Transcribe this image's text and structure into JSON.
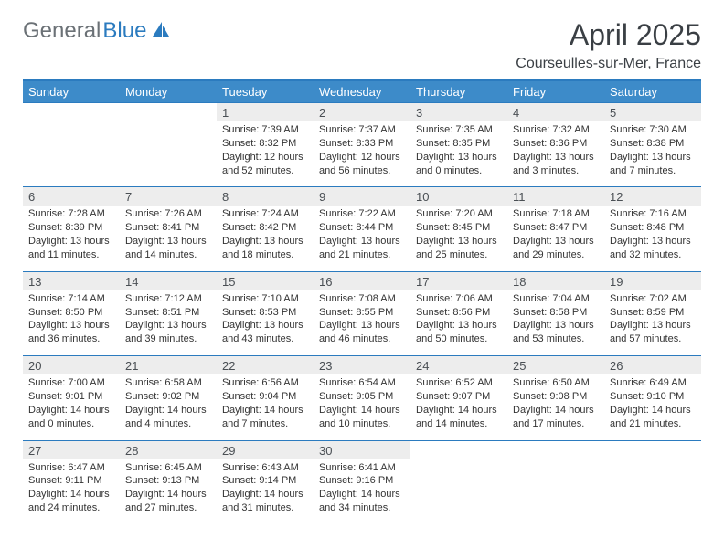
{
  "brand": {
    "part1": "General",
    "part2": "Blue"
  },
  "title": "April 2025",
  "location": "Courseulles-sur-Mer, France",
  "colors": {
    "header_bg": "#3d8bc9",
    "rule": "#2b7bbf",
    "daynum_bg": "#ededed",
    "logo_gray": "#6b7176",
    "logo_blue": "#2b7bbf",
    "text": "#333333",
    "title_text": "#3a3f44"
  },
  "dow": [
    "Sunday",
    "Monday",
    "Tuesday",
    "Wednesday",
    "Thursday",
    "Friday",
    "Saturday"
  ],
  "weeks": [
    [
      null,
      null,
      {
        "n": "1",
        "sr": "Sunrise: 7:39 AM",
        "ss": "Sunset: 8:32 PM",
        "dl": "Daylight: 12 hours and 52 minutes."
      },
      {
        "n": "2",
        "sr": "Sunrise: 7:37 AM",
        "ss": "Sunset: 8:33 PM",
        "dl": "Daylight: 12 hours and 56 minutes."
      },
      {
        "n": "3",
        "sr": "Sunrise: 7:35 AM",
        "ss": "Sunset: 8:35 PM",
        "dl": "Daylight: 13 hours and 0 minutes."
      },
      {
        "n": "4",
        "sr": "Sunrise: 7:32 AM",
        "ss": "Sunset: 8:36 PM",
        "dl": "Daylight: 13 hours and 3 minutes."
      },
      {
        "n": "5",
        "sr": "Sunrise: 7:30 AM",
        "ss": "Sunset: 8:38 PM",
        "dl": "Daylight: 13 hours and 7 minutes."
      }
    ],
    [
      {
        "n": "6",
        "sr": "Sunrise: 7:28 AM",
        "ss": "Sunset: 8:39 PM",
        "dl": "Daylight: 13 hours and 11 minutes."
      },
      {
        "n": "7",
        "sr": "Sunrise: 7:26 AM",
        "ss": "Sunset: 8:41 PM",
        "dl": "Daylight: 13 hours and 14 minutes."
      },
      {
        "n": "8",
        "sr": "Sunrise: 7:24 AM",
        "ss": "Sunset: 8:42 PM",
        "dl": "Daylight: 13 hours and 18 minutes."
      },
      {
        "n": "9",
        "sr": "Sunrise: 7:22 AM",
        "ss": "Sunset: 8:44 PM",
        "dl": "Daylight: 13 hours and 21 minutes."
      },
      {
        "n": "10",
        "sr": "Sunrise: 7:20 AM",
        "ss": "Sunset: 8:45 PM",
        "dl": "Daylight: 13 hours and 25 minutes."
      },
      {
        "n": "11",
        "sr": "Sunrise: 7:18 AM",
        "ss": "Sunset: 8:47 PM",
        "dl": "Daylight: 13 hours and 29 minutes."
      },
      {
        "n": "12",
        "sr": "Sunrise: 7:16 AM",
        "ss": "Sunset: 8:48 PM",
        "dl": "Daylight: 13 hours and 32 minutes."
      }
    ],
    [
      {
        "n": "13",
        "sr": "Sunrise: 7:14 AM",
        "ss": "Sunset: 8:50 PM",
        "dl": "Daylight: 13 hours and 36 minutes."
      },
      {
        "n": "14",
        "sr": "Sunrise: 7:12 AM",
        "ss": "Sunset: 8:51 PM",
        "dl": "Daylight: 13 hours and 39 minutes."
      },
      {
        "n": "15",
        "sr": "Sunrise: 7:10 AM",
        "ss": "Sunset: 8:53 PM",
        "dl": "Daylight: 13 hours and 43 minutes."
      },
      {
        "n": "16",
        "sr": "Sunrise: 7:08 AM",
        "ss": "Sunset: 8:55 PM",
        "dl": "Daylight: 13 hours and 46 minutes."
      },
      {
        "n": "17",
        "sr": "Sunrise: 7:06 AM",
        "ss": "Sunset: 8:56 PM",
        "dl": "Daylight: 13 hours and 50 minutes."
      },
      {
        "n": "18",
        "sr": "Sunrise: 7:04 AM",
        "ss": "Sunset: 8:58 PM",
        "dl": "Daylight: 13 hours and 53 minutes."
      },
      {
        "n": "19",
        "sr": "Sunrise: 7:02 AM",
        "ss": "Sunset: 8:59 PM",
        "dl": "Daylight: 13 hours and 57 minutes."
      }
    ],
    [
      {
        "n": "20",
        "sr": "Sunrise: 7:00 AM",
        "ss": "Sunset: 9:01 PM",
        "dl": "Daylight: 14 hours and 0 minutes."
      },
      {
        "n": "21",
        "sr": "Sunrise: 6:58 AM",
        "ss": "Sunset: 9:02 PM",
        "dl": "Daylight: 14 hours and 4 minutes."
      },
      {
        "n": "22",
        "sr": "Sunrise: 6:56 AM",
        "ss": "Sunset: 9:04 PM",
        "dl": "Daylight: 14 hours and 7 minutes."
      },
      {
        "n": "23",
        "sr": "Sunrise: 6:54 AM",
        "ss": "Sunset: 9:05 PM",
        "dl": "Daylight: 14 hours and 10 minutes."
      },
      {
        "n": "24",
        "sr": "Sunrise: 6:52 AM",
        "ss": "Sunset: 9:07 PM",
        "dl": "Daylight: 14 hours and 14 minutes."
      },
      {
        "n": "25",
        "sr": "Sunrise: 6:50 AM",
        "ss": "Sunset: 9:08 PM",
        "dl": "Daylight: 14 hours and 17 minutes."
      },
      {
        "n": "26",
        "sr": "Sunrise: 6:49 AM",
        "ss": "Sunset: 9:10 PM",
        "dl": "Daylight: 14 hours and 21 minutes."
      }
    ],
    [
      {
        "n": "27",
        "sr": "Sunrise: 6:47 AM",
        "ss": "Sunset: 9:11 PM",
        "dl": "Daylight: 14 hours and 24 minutes."
      },
      {
        "n": "28",
        "sr": "Sunrise: 6:45 AM",
        "ss": "Sunset: 9:13 PM",
        "dl": "Daylight: 14 hours and 27 minutes."
      },
      {
        "n": "29",
        "sr": "Sunrise: 6:43 AM",
        "ss": "Sunset: 9:14 PM",
        "dl": "Daylight: 14 hours and 31 minutes."
      },
      {
        "n": "30",
        "sr": "Sunrise: 6:41 AM",
        "ss": "Sunset: 9:16 PM",
        "dl": "Daylight: 14 hours and 34 minutes."
      },
      null,
      null,
      null
    ]
  ]
}
